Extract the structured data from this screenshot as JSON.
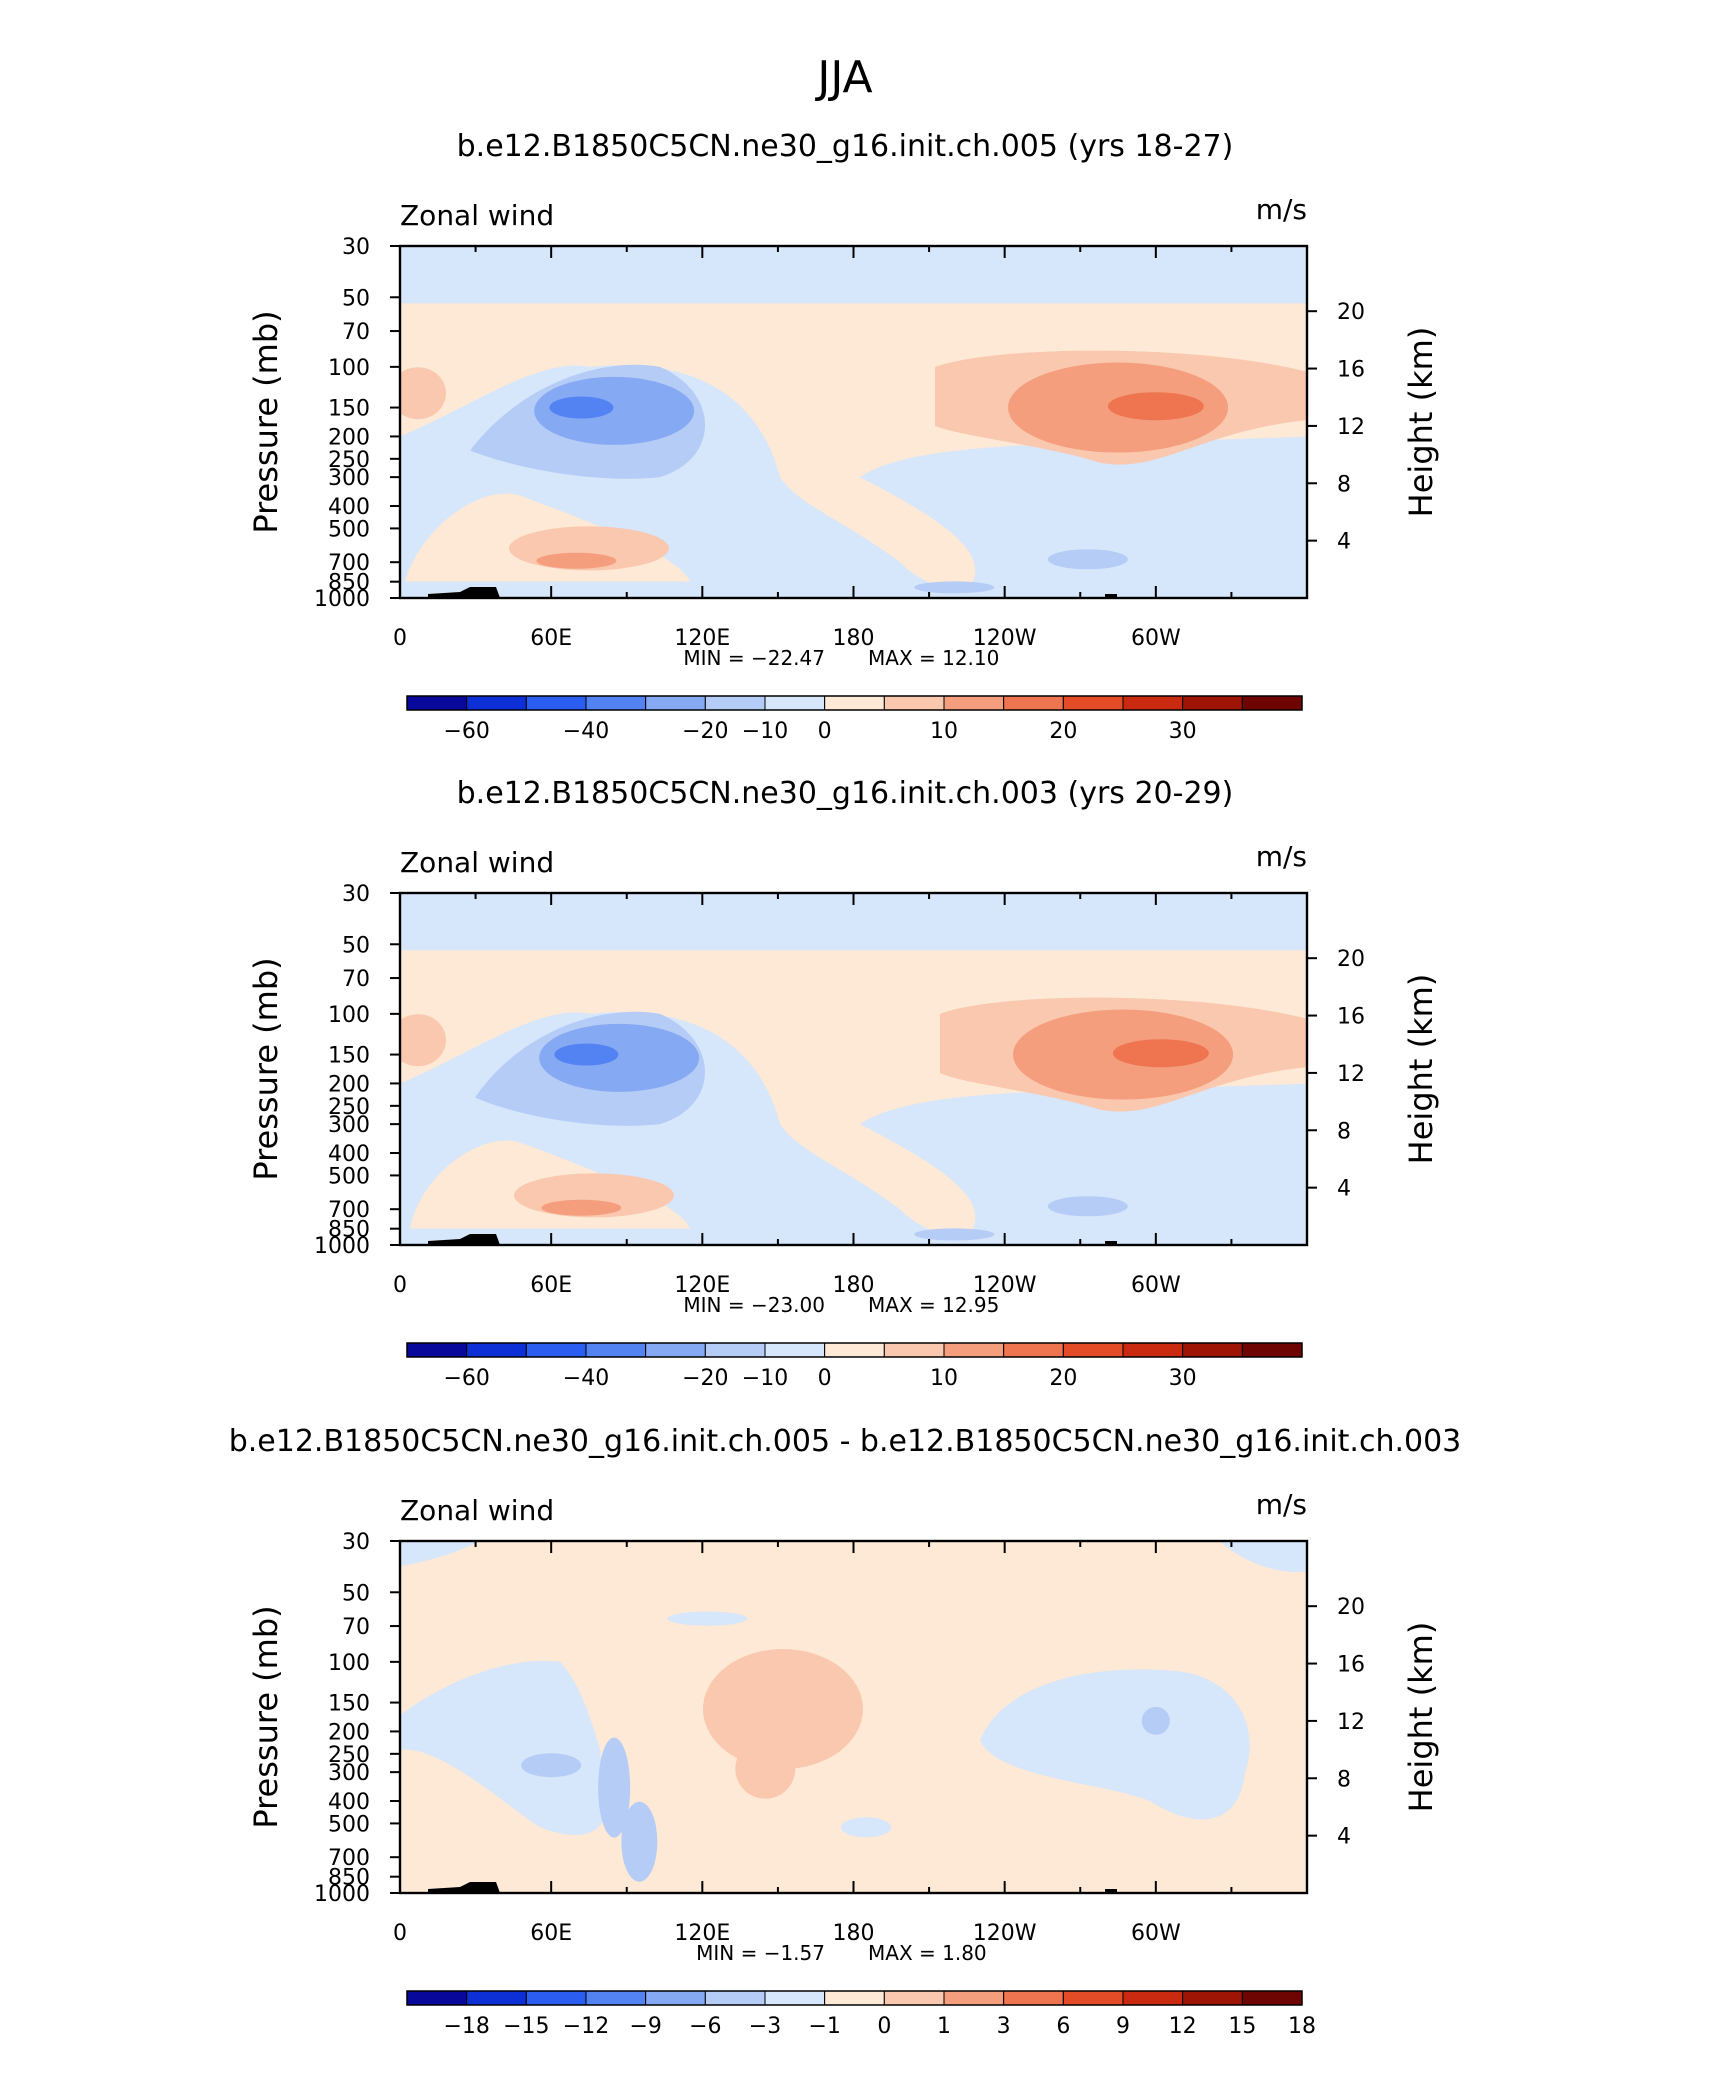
{
  "figure": {
    "title": "JJA",
    "pressure_axis_label": "Pressure (mb)",
    "height_axis_label": "Height (km)"
  },
  "chart_data": [
    {
      "type": "heatmap",
      "title": "b.e12.B1850C5CN.ne30_g16.init.ch.005 (yrs 18-27)",
      "variable": "Zonal wind",
      "units": "m/s",
      "x_ticks": [
        "0",
        "60E",
        "120E",
        "180",
        "120W",
        "60W"
      ],
      "y_ticks": [
        "30",
        "50",
        "70",
        "100",
        "150",
        "200",
        "250",
        "300",
        "400",
        "500",
        "700",
        "850",
        "1000"
      ],
      "y2_ticks": [
        "20",
        "16",
        "12",
        "8",
        "4"
      ],
      "min_label": "MIN = −22.47",
      "max_label": "MAX = 12.10",
      "min": -22.47,
      "max": 12.1,
      "colorbar_labels": [
        "−60",
        "−40",
        "−20",
        "−10",
        "0",
        "10",
        "20",
        "30"
      ],
      "colorbar_colors": [
        "#08089a",
        "#0c2fd6",
        "#2a5df0",
        "#5383f2",
        "#86a9f4",
        "#b5ccf6",
        "#d6e6fb",
        "#fde9d6",
        "#fac8ae",
        "#f59e7e",
        "#ee7550",
        "#e44b27",
        "#c92a10",
        "#9e1506",
        "#6f0503"
      ],
      "features": [
        {
          "name": "negative-core",
          "lon": 75,
          "p": 150,
          "value": -22.47
        },
        {
          "name": "positive-core",
          "lon": 300,
          "p": 150,
          "value": 12.1
        }
      ]
    },
    {
      "type": "heatmap",
      "title": "b.e12.B1850C5CN.ne30_g16.init.ch.003 (yrs 20-29)",
      "variable": "Zonal wind",
      "units": "m/s",
      "x_ticks": [
        "0",
        "60E",
        "120E",
        "180",
        "120W",
        "60W"
      ],
      "y_ticks": [
        "30",
        "50",
        "70",
        "100",
        "150",
        "200",
        "250",
        "300",
        "400",
        "500",
        "700",
        "850",
        "1000"
      ],
      "y2_ticks": [
        "20",
        "16",
        "12",
        "8",
        "4"
      ],
      "min_label": "MIN = −23.00",
      "max_label": "MAX = 12.95",
      "min": -23.0,
      "max": 12.95,
      "colorbar_labels": [
        "−60",
        "−40",
        "−20",
        "−10",
        "0",
        "10",
        "20",
        "30"
      ],
      "colorbar_colors": [
        "#08089a",
        "#0c2fd6",
        "#2a5df0",
        "#5383f2",
        "#86a9f4",
        "#b5ccf6",
        "#d6e6fb",
        "#fde9d6",
        "#fac8ae",
        "#f59e7e",
        "#ee7550",
        "#e44b27",
        "#c92a10",
        "#9e1506",
        "#6f0503"
      ],
      "features": [
        {
          "name": "negative-core",
          "lon": 78,
          "p": 150,
          "value": -23.0
        },
        {
          "name": "positive-core",
          "lon": 300,
          "p": 150,
          "value": 12.95
        }
      ]
    },
    {
      "type": "heatmap",
      "title": "b.e12.B1850C5CN.ne30_g16.init.ch.005 - b.e12.B1850C5CN.ne30_g16.init.ch.003",
      "variable": "Zonal wind",
      "units": "m/s",
      "x_ticks": [
        "0",
        "60E",
        "120E",
        "180",
        "120W",
        "60W"
      ],
      "y_ticks": [
        "30",
        "50",
        "70",
        "100",
        "150",
        "200",
        "250",
        "300",
        "400",
        "500",
        "700",
        "850",
        "1000"
      ],
      "y2_ticks": [
        "20",
        "16",
        "12",
        "8",
        "4"
      ],
      "min_label": "MIN = −1.57",
      "max_label": "MAX = 1.80",
      "min": -1.57,
      "max": 1.8,
      "colorbar_labels": [
        "−18",
        "−15",
        "−12",
        "−9",
        "−6",
        "−3",
        "−1",
        "0",
        "1",
        "3",
        "6",
        "9",
        "12",
        "15",
        "18"
      ],
      "colorbar_colors": [
        "#08089a",
        "#0c2fd6",
        "#2a5df0",
        "#5383f2",
        "#86a9f4",
        "#b5ccf6",
        "#d6e6fb",
        "#fde9d6",
        "#fac8ae",
        "#f59e7e",
        "#ee7550",
        "#e44b27",
        "#c92a10",
        "#9e1506",
        "#6f0503"
      ],
      "features": [
        {
          "name": "positive-patch",
          "lon": 160,
          "p": 150,
          "value": 1.8
        },
        {
          "name": "negative-patch",
          "lon": 85,
          "p": 500,
          "value": -1.57
        }
      ]
    }
  ]
}
